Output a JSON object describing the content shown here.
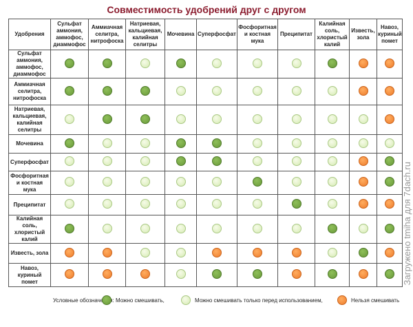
{
  "title": "Совместимость удобрений друг с другом",
  "corner": "Удобрения",
  "columns": [
    "Сульфат аммония, аммофос, диаммофос",
    "Аммиачная селитра, нитрофоска",
    "Натриевая, кальциевая, калийная селитры",
    "Мочевина",
    "Суперфосфат",
    "Фосфоритная и костная мука",
    "Преципитат",
    "Калийная соль, хлористый калий",
    "Известь, зола",
    "Навоз, куриный помет"
  ],
  "rows": [
    {
      "label": "Сульфат аммония, аммофос, диаммофос",
      "cells": [
        "G",
        "G",
        "L",
        "G",
        "L",
        "L",
        "L",
        "G",
        "O",
        "O"
      ]
    },
    {
      "label": "Аммиачная селитра, нитрофоска",
      "cells": [
        "G",
        "G",
        "G",
        "L",
        "L",
        "L",
        "L",
        "L",
        "O",
        "O"
      ]
    },
    {
      "label": "Натриевая, кальциевая, калийная селитры",
      "cells": [
        "L",
        "G",
        "G",
        "L",
        "L",
        "L",
        "L",
        "L",
        "L",
        "O"
      ]
    },
    {
      "label": "Мочевина",
      "cells": [
        "G",
        "L",
        "L",
        "G",
        "G",
        "L",
        "L",
        "L",
        "L",
        "L"
      ]
    },
    {
      "label": "Суперфосфат",
      "cells": [
        "L",
        "L",
        "L",
        "G",
        "G",
        "L",
        "L",
        "L",
        "O",
        "G"
      ]
    },
    {
      "label": "Фосфоритная и костная мука",
      "cells": [
        "L",
        "L",
        "L",
        "L",
        "L",
        "G",
        "L",
        "L",
        "O",
        "G"
      ]
    },
    {
      "label": "Преципитат",
      "cells": [
        "L",
        "L",
        "L",
        "L",
        "L",
        "L",
        "G",
        "L",
        "O",
        "O"
      ]
    },
    {
      "label": "Калийная соль, хлористый калий",
      "cells": [
        "G",
        "L",
        "L",
        "L",
        "L",
        "L",
        "L",
        "G",
        "L",
        "G"
      ]
    },
    {
      "label": "Известь, зола",
      "cells": [
        "O",
        "O",
        "L",
        "L",
        "O",
        "O",
        "O",
        "L",
        "G",
        "O"
      ]
    },
    {
      "label": "Навоз, куриный помет",
      "cells": [
        "O",
        "O",
        "O",
        "L",
        "G",
        "G",
        "O",
        "G",
        "O",
        "G"
      ]
    }
  ],
  "legend": {
    "title": "Условные обозначения:",
    "items": [
      {
        "code": "G",
        "label": "Можно смешивать,",
        "color": "#77a844"
      },
      {
        "code": "L",
        "label": "Можно смешивать только перед использованием,",
        "color": "#e3f2c8"
      },
      {
        "code": "O",
        "label": "Нельзя смешивать",
        "color": "#f48a38"
      }
    ]
  },
  "watermark": "Загружено tmiha для 7dach.ru"
}
